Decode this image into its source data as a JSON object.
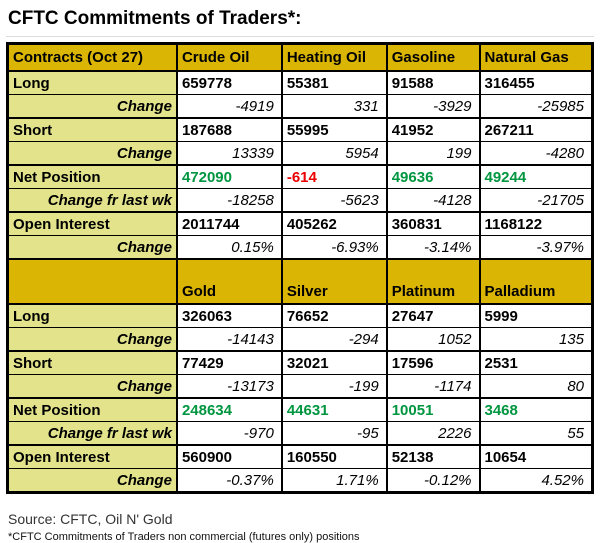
{
  "title": "CFTC Commitments of Traders*:",
  "colors": {
    "header_bg": "#dbb504",
    "label_bg": "#e2e38b",
    "positive_value": "#009640",
    "negative_value": "#ea0000",
    "border": "#000000"
  },
  "sections": [
    {
      "header_label": "Contracts (Oct 27)",
      "columns": [
        "Crude Oil",
        "Heating Oil",
        "Gasoline",
        "Natural Gas"
      ],
      "rows": [
        {
          "label": "Long",
          "type": "main",
          "values": [
            "659778",
            "55381",
            "91588",
            "316455"
          ]
        },
        {
          "label": "Change",
          "type": "change",
          "values": [
            "-4919",
            "331",
            "-3929",
            "-25985"
          ]
        },
        {
          "label": "Short",
          "type": "main",
          "values": [
            "187688",
            "55995",
            "41952",
            "267211"
          ]
        },
        {
          "label": "Change",
          "type": "change",
          "values": [
            "13339",
            "5954",
            "199",
            "-4280"
          ]
        },
        {
          "label": "Net Position",
          "type": "net",
          "values": [
            "472090",
            "-614",
            "49636",
            "49244"
          ]
        },
        {
          "label": "Change fr last wk",
          "type": "change",
          "values": [
            "-18258",
            "-5623",
            "-4128",
            "-21705"
          ]
        },
        {
          "label": "Open Interest",
          "type": "main",
          "values": [
            "2011744",
            "405262",
            "360831",
            "1168122"
          ]
        },
        {
          "label": "Change",
          "type": "change",
          "values": [
            "0.15%",
            "-6.93%",
            "-3.14%",
            "-3.97%"
          ]
        }
      ]
    },
    {
      "header_label": "",
      "columns": [
        "Gold",
        "Silver",
        "Platinum",
        "Palladium"
      ],
      "rows": [
        {
          "label": "Long",
          "type": "main",
          "values": [
            "326063",
            "76652",
            "27647",
            "5999"
          ]
        },
        {
          "label": "Change",
          "type": "change",
          "values": [
            "-14143",
            "-294",
            "1052",
            "135"
          ]
        },
        {
          "label": "Short",
          "type": "main",
          "values": [
            "77429",
            "32021",
            "17596",
            "2531"
          ]
        },
        {
          "label": "Change",
          "type": "change",
          "values": [
            "-13173",
            "-199",
            "-1174",
            "80"
          ]
        },
        {
          "label": "Net Position",
          "type": "net",
          "values": [
            "248634",
            "44631",
            "10051",
            "3468"
          ]
        },
        {
          "label": "Change fr last wk",
          "type": "change",
          "values": [
            "-970",
            "-95",
            "2226",
            "55"
          ]
        },
        {
          "label": "Open Interest",
          "type": "main",
          "values": [
            "560900",
            "160550",
            "52138",
            "10654"
          ]
        },
        {
          "label": "Change",
          "type": "change",
          "values": [
            "-0.37%",
            "1.71%",
            "-0.12%",
            "4.52%"
          ]
        }
      ]
    }
  ],
  "footer": {
    "source": "Source: CFTC, Oil N' Gold",
    "footnote": "*CFTC Commitments of Traders non commercial (futures only) positions"
  }
}
